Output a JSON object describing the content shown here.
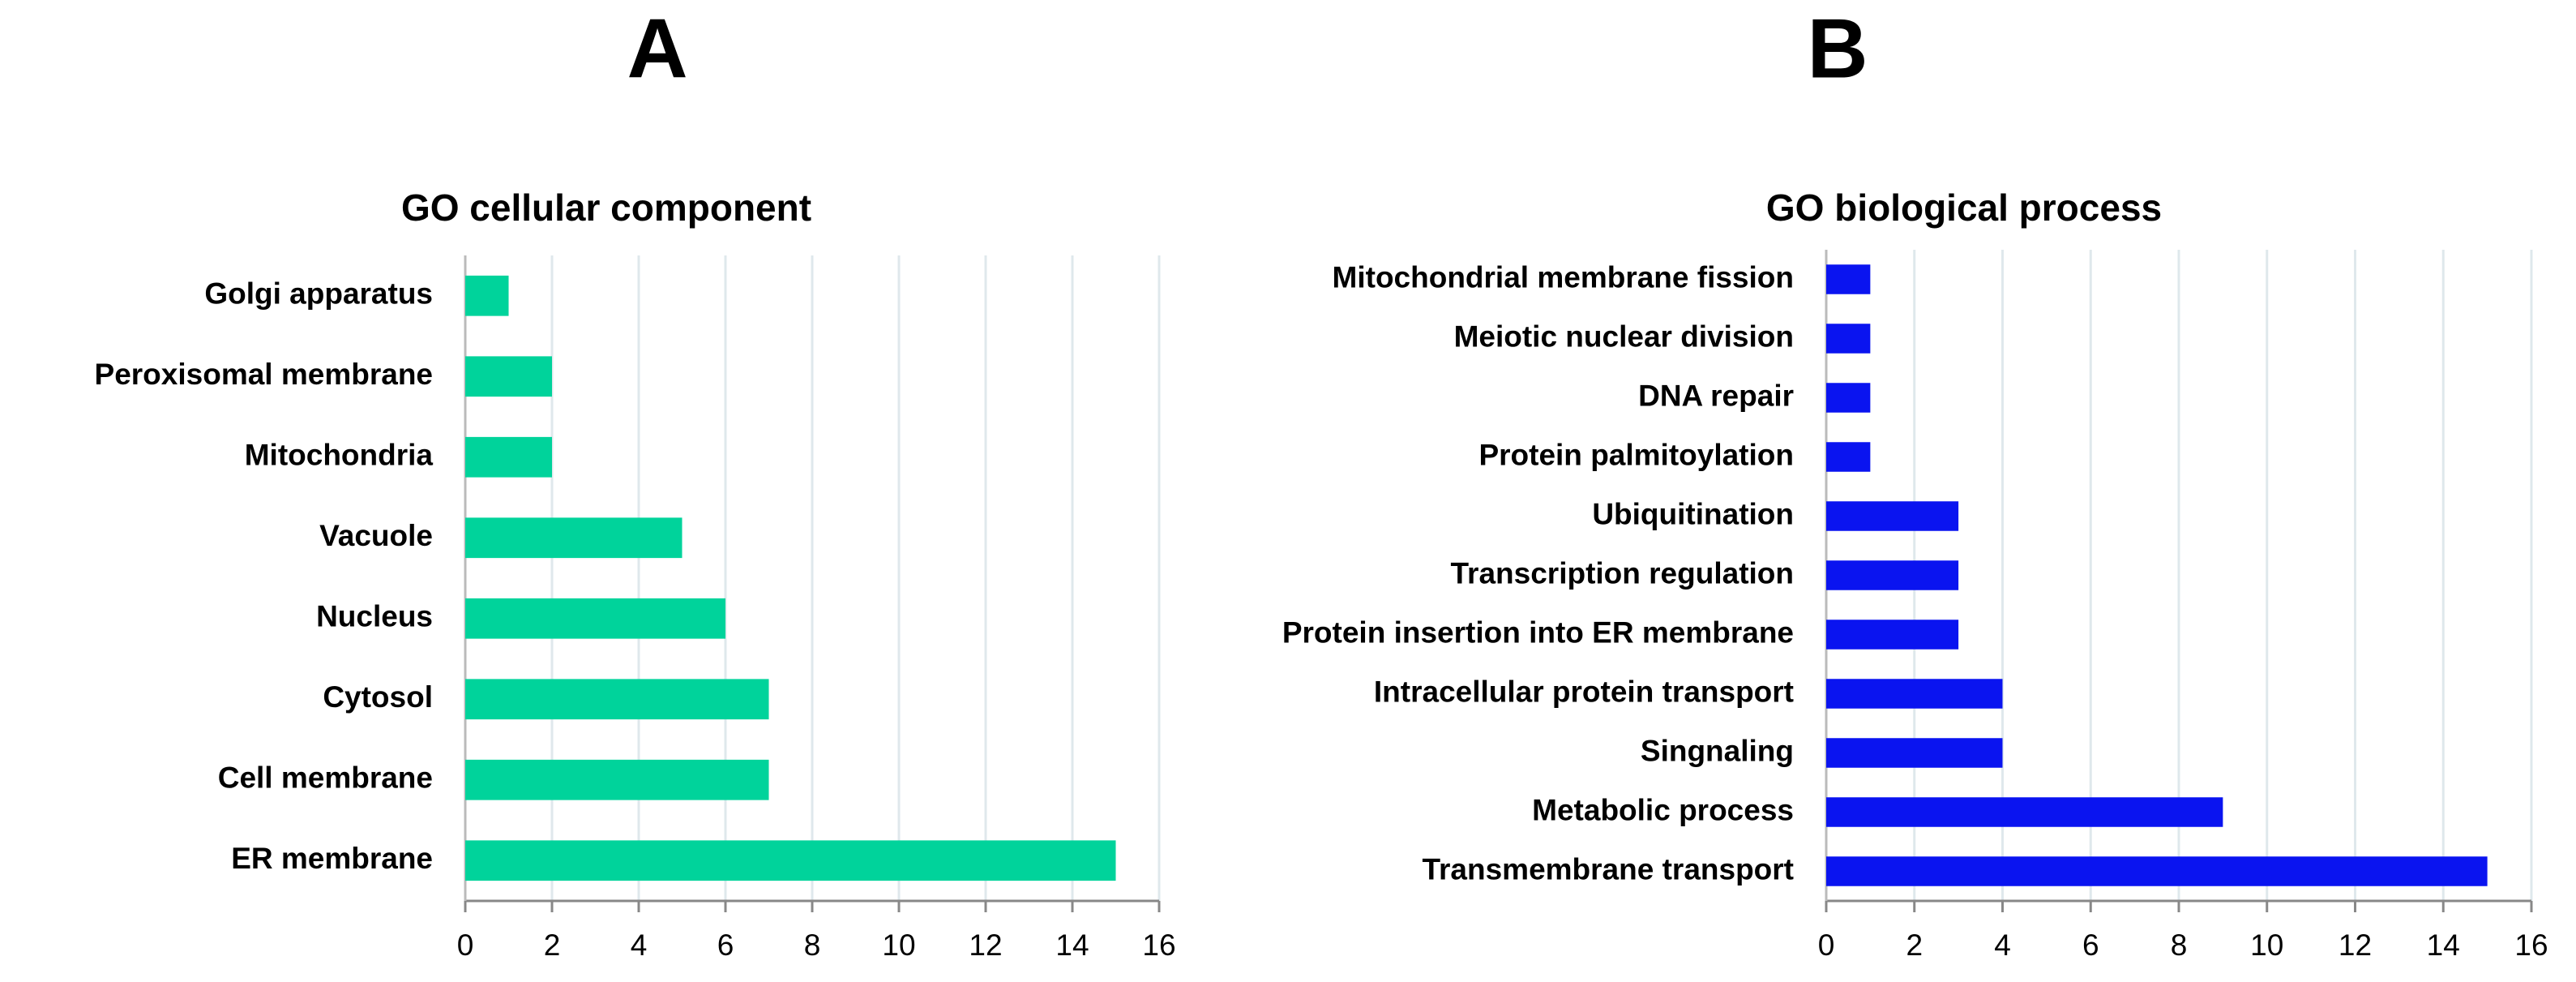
{
  "chart_data": [
    {
      "type": "bar",
      "orientation": "horizontal",
      "panel_label": "A",
      "title": "GO cellular component",
      "categories": [
        "Golgi apparatus",
        "Peroxisomal membrane",
        "Mitochondria",
        "Vacuole",
        "Nucleus",
        "Cytosol",
        "Cell membrane",
        "ER membrane"
      ],
      "values": [
        1,
        2,
        2,
        5,
        6,
        7,
        7,
        15
      ],
      "color": "#00d39b",
      "xlim": [
        0,
        16
      ],
      "xticks": [
        0,
        2,
        4,
        6,
        8,
        10,
        12,
        14,
        16
      ],
      "grid": true
    },
    {
      "type": "bar",
      "orientation": "horizontal",
      "panel_label": "B",
      "title": "GO biological process",
      "categories": [
        "Mitochondrial membrane fission",
        "Meiotic nuclear division",
        "DNA repair",
        "Protein palmitoylation",
        "Ubiquitination",
        "Transcription regulation",
        "Protein insertion into ER membrane",
        "Intracellular protein transport",
        "Singnaling",
        "Metabolic process",
        "Transmembrane transport"
      ],
      "values": [
        1,
        1,
        1,
        1,
        3,
        3,
        3,
        4,
        4,
        9,
        15
      ],
      "color": "#0a14f0",
      "xlim": [
        0,
        16
      ],
      "xticks": [
        0,
        2,
        4,
        6,
        8,
        10,
        12,
        14,
        16
      ],
      "grid": true
    }
  ]
}
